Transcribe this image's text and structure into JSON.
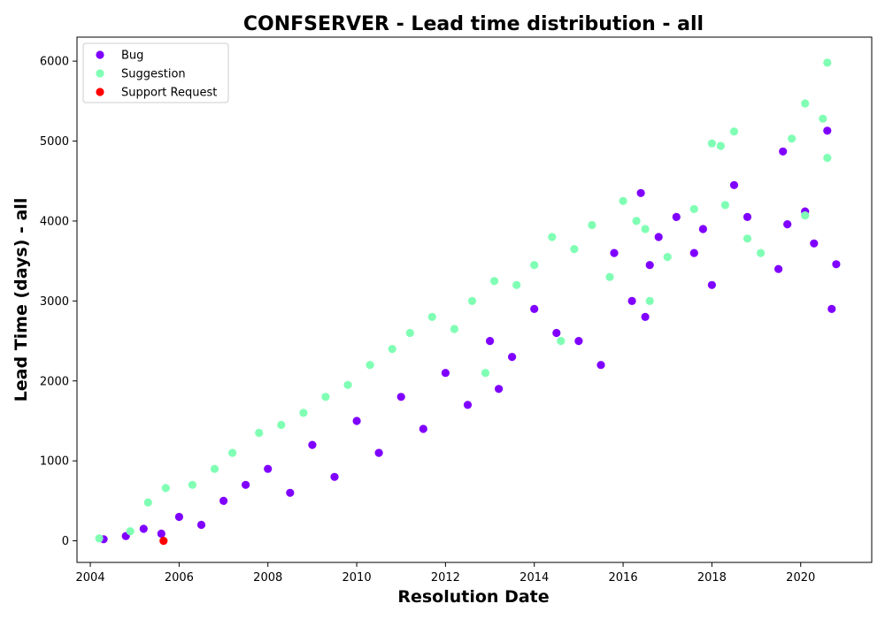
{
  "chart_data": {
    "type": "scatter",
    "title": "CONFSERVER - Lead time distribution - all",
    "xlabel": "Resolution Date",
    "ylabel": "Lead Time (days) - all",
    "xlim": [
      2003.7,
      2021.6
    ],
    "ylim": [
      -270,
      6300
    ],
    "x_ticks": [
      2004,
      2006,
      2008,
      2010,
      2012,
      2014,
      2016,
      2018,
      2020
    ],
    "y_ticks": [
      0,
      1000,
      2000,
      3000,
      4000,
      5000,
      6000
    ],
    "grid": false,
    "legend_position": "upper-left",
    "series": [
      {
        "name": "Bug",
        "color": "#8000ff",
        "points": [
          [
            2004.3,
            20
          ],
          [
            2004.8,
            60
          ],
          [
            2005.2,
            150
          ],
          [
            2005.6,
            90
          ],
          [
            2006.0,
            300
          ],
          [
            2006.5,
            200
          ],
          [
            2007.0,
            500
          ],
          [
            2007.5,
            700
          ],
          [
            2008.0,
            900
          ],
          [
            2008.5,
            600
          ],
          [
            2009.0,
            1200
          ],
          [
            2009.5,
            800
          ],
          [
            2010.0,
            1500
          ],
          [
            2010.5,
            1100
          ],
          [
            2011.0,
            1800
          ],
          [
            2011.5,
            1400
          ],
          [
            2012.0,
            2100
          ],
          [
            2012.5,
            1700
          ],
          [
            2013.0,
            2500
          ],
          [
            2013.5,
            2300
          ],
          [
            2014.0,
            2900
          ],
          [
            2014.5,
            2600
          ],
          [
            2015.0,
            2500
          ],
          [
            2015.5,
            2200
          ],
          [
            2015.8,
            3600
          ],
          [
            2016.2,
            3000
          ],
          [
            2016.4,
            4350
          ],
          [
            2016.6,
            3450
          ],
          [
            2016.8,
            3800
          ],
          [
            2017.2,
            4050
          ],
          [
            2017.6,
            3600
          ],
          [
            2018.0,
            3200
          ],
          [
            2018.5,
            4450
          ],
          [
            2018.8,
            4050
          ],
          [
            2019.6,
            4870
          ],
          [
            2019.7,
            3960
          ],
          [
            2020.1,
            4120
          ],
          [
            2020.3,
            3720
          ],
          [
            2020.6,
            5130
          ],
          [
            2020.8,
            3460
          ],
          [
            2020.7,
            2900
          ],
          [
            2019.5,
            3400
          ],
          [
            2017.8,
            3900
          ],
          [
            2016.5,
            2800
          ],
          [
            2013.2,
            1900
          ]
        ]
      },
      {
        "name": "Suggestion",
        "color": "#80ffb4",
        "points": [
          [
            2004.2,
            30
          ],
          [
            2004.9,
            120
          ],
          [
            2005.3,
            480
          ],
          [
            2005.7,
            660
          ],
          [
            2006.3,
            700
          ],
          [
            2006.8,
            900
          ],
          [
            2007.2,
            1100
          ],
          [
            2007.8,
            1350
          ],
          [
            2008.3,
            1450
          ],
          [
            2008.8,
            1600
          ],
          [
            2009.3,
            1800
          ],
          [
            2009.8,
            1950
          ],
          [
            2010.3,
            2200
          ],
          [
            2010.8,
            2400
          ],
          [
            2011.2,
            2600
          ],
          [
            2011.7,
            2800
          ],
          [
            2012.2,
            2650
          ],
          [
            2012.6,
            3000
          ],
          [
            2013.1,
            3250
          ],
          [
            2013.6,
            3200
          ],
          [
            2014.0,
            3450
          ],
          [
            2014.4,
            3800
          ],
          [
            2014.9,
            3650
          ],
          [
            2015.3,
            3950
          ],
          [
            2015.7,
            3300
          ],
          [
            2016.0,
            4250
          ],
          [
            2016.3,
            4000
          ],
          [
            2016.5,
            3900
          ],
          [
            2017.0,
            3550
          ],
          [
            2017.6,
            4150
          ],
          [
            2018.0,
            4970
          ],
          [
            2018.2,
            4940
          ],
          [
            2018.5,
            5120
          ],
          [
            2018.8,
            3780
          ],
          [
            2019.1,
            3600
          ],
          [
            2019.8,
            5030
          ],
          [
            2020.1,
            5470
          ],
          [
            2020.5,
            5280
          ],
          [
            2020.6,
            5980
          ],
          [
            2020.6,
            4790
          ],
          [
            2020.1,
            4070
          ],
          [
            2018.3,
            4200
          ],
          [
            2016.6,
            3000
          ],
          [
            2014.6,
            2500
          ],
          [
            2012.9,
            2100
          ]
        ]
      },
      {
        "name": "Support Request",
        "color": "#ff0000",
        "points": [
          [
            2005.65,
            0
          ]
        ]
      }
    ]
  }
}
